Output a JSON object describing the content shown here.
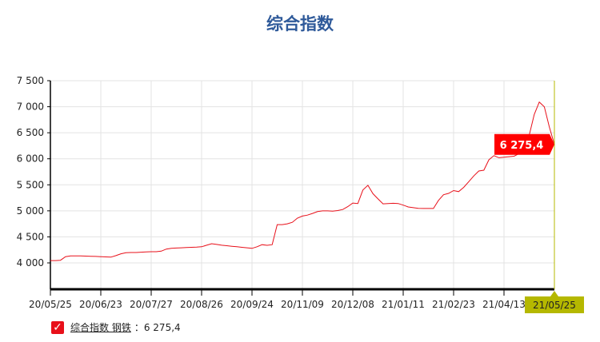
{
  "chart_data": {
    "type": "line",
    "title": "综合指数",
    "xlabel": "",
    "ylabel": "",
    "ylim": [
      3500,
      7500
    ],
    "yticks": [
      4000,
      4500,
      5000,
      5500,
      6000,
      6500,
      7000,
      7500
    ],
    "ytick_labels": [
      "4 000",
      "4 500",
      "5 000",
      "5 500",
      "6 000",
      "6 500",
      "7 000",
      "7 500"
    ],
    "xtick_labels": [
      "20/05/25",
      "20/06/23",
      "20/07/27",
      "20/08/26",
      "20/09/24",
      "20/11/09",
      "20/12/08",
      "21/01/11",
      "21/02/23",
      "21/04/13",
      "21/05/25"
    ],
    "grid": true,
    "line_color": "#e8101a",
    "series": [
      {
        "name": "综合指数 钢铁",
        "values": [
          4045,
          4045,
          4050,
          4120,
          4133,
          4135,
          4133,
          4130,
          4128,
          4125,
          4120,
          4115,
          4110,
          4140,
          4175,
          4195,
          4200,
          4200,
          4205,
          4212,
          4215,
          4215,
          4225,
          4265,
          4280,
          4285,
          4290,
          4295,
          4300,
          4303,
          4310,
          4340,
          4368,
          4355,
          4340,
          4330,
          4320,
          4310,
          4300,
          4290,
          4280,
          4310,
          4350,
          4337,
          4350,
          4735,
          4735,
          4750,
          4780,
          4860,
          4900,
          4918,
          4950,
          4985,
          5000,
          5000,
          4995,
          5005,
          5025,
          5080,
          5150,
          5140,
          5400,
          5490,
          5330,
          5230,
          5135,
          5140,
          5145,
          5140,
          5110,
          5075,
          5060,
          5048,
          5045,
          5045,
          5045,
          5200,
          5310,
          5335,
          5390,
          5370,
          5450,
          5560,
          5670,
          5765,
          5780,
          5980,
          6060,
          6020,
          6030,
          6040,
          6050,
          6100,
          6200,
          6450,
          6850,
          7090,
          7000,
          6610,
          6275.4
        ]
      }
    ],
    "tooltip": {
      "value_label": "6 275,4",
      "color": "#ff0000"
    },
    "crosshair_date": "21/05/25",
    "crosshair_color": "#b5b800"
  },
  "legend": {
    "name": "综合指数 钢铁",
    "separator": "：",
    "value": "6 275,4",
    "check": "✓"
  }
}
